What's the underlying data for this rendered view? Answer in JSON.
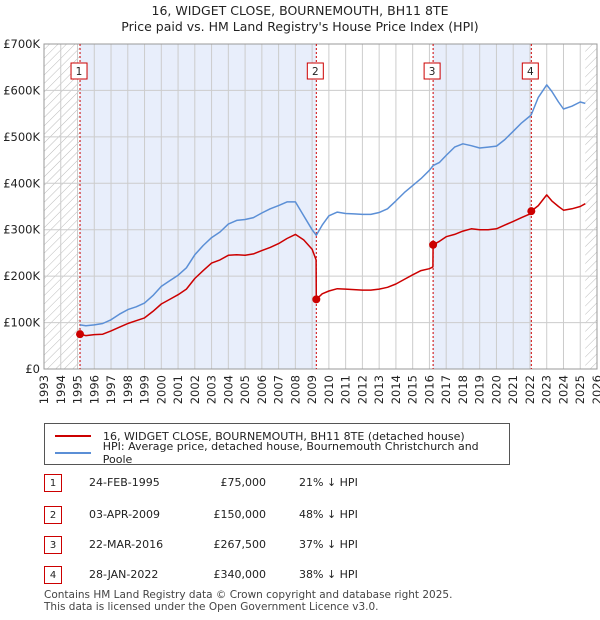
{
  "header": {
    "title": "16, WIDGET CLOSE, BOURNEMOUTH, BH11 8TE",
    "subtitle": "Price paid vs. HM Land Registry's House Price Index (HPI)"
  },
  "legend": {
    "property_label": "16, WIDGET CLOSE, BOURNEMOUTH, BH11 8TE (detached house)",
    "hpi_label": "HPI: Average price, detached house, Bournemouth Christchurch and Poole"
  },
  "sales": [
    {
      "num": "1",
      "date": "24-FEB-1995",
      "price": "£75,000",
      "hpi": "21% ↓ HPI"
    },
    {
      "num": "2",
      "date": "03-APR-2009",
      "price": "£150,000",
      "hpi": "48% ↓ HPI"
    },
    {
      "num": "3",
      "date": "22-MAR-2016",
      "price": "£267,500",
      "hpi": "37% ↓ HPI"
    },
    {
      "num": "4",
      "date": "28-JAN-2022",
      "price": "£340,000",
      "hpi": "38% ↓ HPI"
    }
  ],
  "footer": {
    "line1": "Contains HM Land Registry data © Crown copyright and database right 2025.",
    "line2": "This data is licensed under the Open Government Licence v3.0."
  },
  "colors": {
    "property": "#cc0000",
    "hpi": "#5b8fd6",
    "shade": "#e8eefb",
    "grid": "#cccccc"
  },
  "chart_data": {
    "type": "line",
    "title": "16, WIDGET CLOSE, BOURNEMOUTH, BH11 8TE",
    "subtitle": "Price paid vs. HM Land Registry's House Price Index (HPI)",
    "xlabel": "",
    "ylabel": "",
    "xlim": [
      1993,
      2026
    ],
    "ylim": [
      0,
      700000
    ],
    "x_ticks": [
      1993,
      1994,
      1995,
      1996,
      1997,
      1998,
      1999,
      2000,
      2001,
      2002,
      2003,
      2004,
      2005,
      2006,
      2007,
      2008,
      2009,
      2010,
      2011,
      2012,
      2013,
      2014,
      2015,
      2016,
      2017,
      2018,
      2019,
      2020,
      2021,
      2022,
      2023,
      2024,
      2025,
      2026
    ],
    "y_ticks": [
      0,
      100000,
      200000,
      300000,
      400000,
      500000,
      600000,
      700000
    ],
    "y_tick_labels": [
      "£0",
      "£100K",
      "£200K",
      "£300K",
      "£400K",
      "£500K",
      "£600K",
      "£700K"
    ],
    "grid": true,
    "shaded_spans": [
      [
        1995.15,
        2009.25
      ],
      [
        2016.22,
        2022.08
      ]
    ],
    "hatched_spans": [
      [
        1993,
        1995.15
      ],
      [
        2025.3,
        2026
      ]
    ],
    "annotations": [
      {
        "label": "1",
        "x": 1995.15
      },
      {
        "label": "2",
        "x": 2009.25
      },
      {
        "label": "3",
        "x": 2016.22
      },
      {
        "label": "4",
        "x": 2022.08
      }
    ],
    "series": [
      {
        "name": "16, WIDGET CLOSE, BOURNEMOUTH, BH11 8TE (detached house)",
        "x": [
          1995.15,
          1995.5,
          1996,
          1996.5,
          1997,
          1997.5,
          1998,
          1998.5,
          1999,
          1999.5,
          2000,
          2000.5,
          2001,
          2001.5,
          2002,
          2002.5,
          2003,
          2003.5,
          2004,
          2004.5,
          2005,
          2005.5,
          2006,
          2006.5,
          2007,
          2007.5,
          2008,
          2008.5,
          2009.0,
          2009.24,
          2009.25,
          2009.6,
          2010,
          2010.5,
          2011,
          2011.5,
          2012,
          2012.5,
          2013,
          2013.5,
          2014,
          2014.5,
          2015,
          2015.5,
          2016.0,
          2016.21,
          2016.22,
          2016.6,
          2017,
          2017.5,
          2018,
          2018.5,
          2019,
          2019.5,
          2020,
          2020.5,
          2021,
          2021.5,
          2022.0,
          2022.08,
          2022.5,
          2023,
          2023.3,
          2023.7,
          2024,
          2024.5,
          2025,
          2025.3
        ],
        "values": [
          75000,
          72000,
          74000,
          75000,
          82000,
          90000,
          98000,
          104000,
          110000,
          124000,
          140000,
          150000,
          160000,
          172000,
          195000,
          212000,
          228000,
          235000,
          245000,
          246000,
          245000,
          248000,
          255000,
          262000,
          270000,
          281000,
          290000,
          278000,
          258000,
          235000,
          150000,
          162000,
          168000,
          173000,
          172000,
          171000,
          170000,
          170000,
          172000,
          176000,
          183000,
          193000,
          203000,
          212000,
          216000,
          220000,
          267500,
          275000,
          285000,
          290000,
          297000,
          302000,
          300000,
          300000,
          302000,
          310000,
          318000,
          326000,
          334000,
          340000,
          352000,
          375000,
          362000,
          350000,
          342000,
          345000,
          350000,
          356000
        ]
      },
      {
        "name": "HPI: Average price, detached house, Bournemouth Christchurch and Poole",
        "x": [
          1995.15,
          1995.5,
          1996,
          1996.5,
          1997,
          1997.5,
          1998,
          1998.5,
          1999,
          1999.5,
          2000,
          2000.5,
          2001,
          2001.5,
          2002,
          2002.5,
          2003,
          2003.5,
          2004,
          2004.5,
          2005,
          2005.5,
          2006,
          2006.5,
          2007,
          2007.5,
          2008,
          2008.5,
          2009.0,
          2009.25,
          2009.6,
          2010,
          2010.5,
          2011,
          2011.5,
          2012,
          2012.5,
          2013,
          2013.5,
          2014,
          2014.5,
          2015,
          2015.5,
          2016.0,
          2016.22,
          2016.6,
          2017,
          2017.5,
          2018,
          2018.5,
          2019,
          2019.5,
          2020,
          2020.5,
          2021,
          2021.5,
          2022.0,
          2022.08,
          2022.5,
          2023,
          2023.3,
          2023.7,
          2024,
          2024.5,
          2025,
          2025.3
        ],
        "values": [
          95000,
          93000,
          95000,
          98000,
          106000,
          118000,
          128000,
          134000,
          142000,
          158000,
          178000,
          190000,
          202000,
          218000,
          246000,
          266000,
          283000,
          295000,
          312000,
          320000,
          322000,
          326000,
          336000,
          345000,
          352000,
          360000,
          360000,
          330000,
          300000,
          288000,
          310000,
          330000,
          338000,
          335000,
          334000,
          333000,
          333000,
          337000,
          345000,
          362000,
          380000,
          395000,
          410000,
          428000,
          438000,
          445000,
          460000,
          478000,
          485000,
          481000,
          476000,
          478000,
          480000,
          494000,
          512000,
          530000,
          545000,
          548000,
          585000,
          612000,
          598000,
          575000,
          560000,
          566000,
          575000,
          572000
        ]
      }
    ]
  }
}
